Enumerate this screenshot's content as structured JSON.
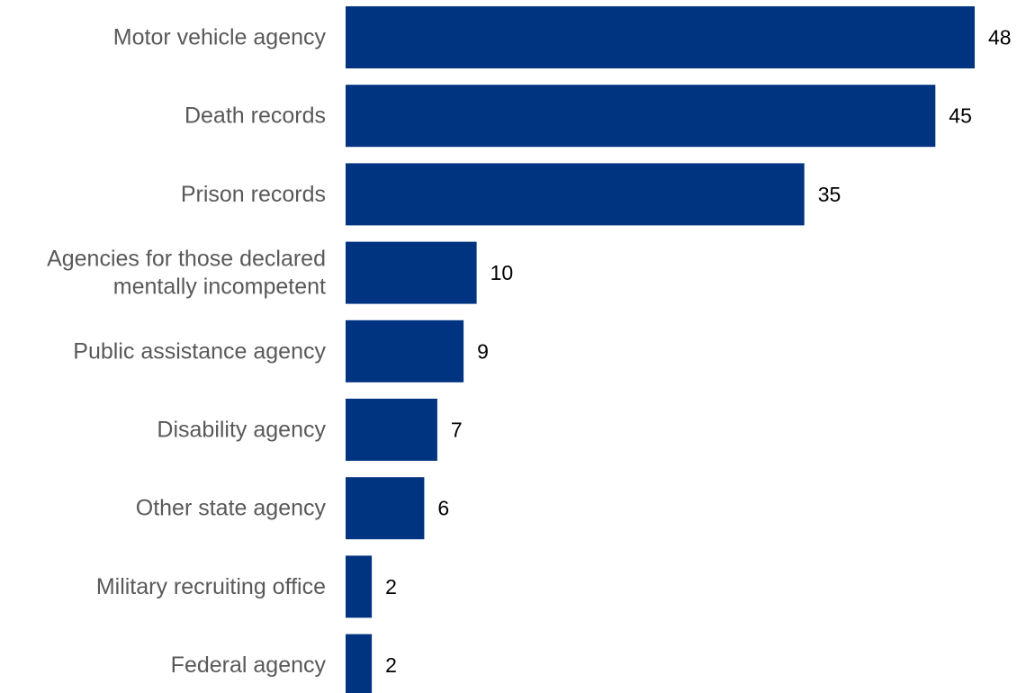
{
  "chart_data": {
    "type": "bar",
    "orientation": "horizontal",
    "categories": [
      "Motor vehicle agency",
      "Death records",
      "Prison records",
      "Agencies for those declared\nmentally incompetent",
      "Public assistance agency",
      "Disability agency",
      "Other state agency",
      "Military recruiting office",
      "Federal agency"
    ],
    "values": [
      48,
      45,
      35,
      10,
      9,
      7,
      6,
      2,
      2
    ],
    "data_labels": [
      "48",
      "45",
      "35",
      "10",
      "9",
      "7",
      "6",
      "2",
      "2"
    ],
    "title": "",
    "xlabel": "",
    "ylabel": "",
    "xlim": [
      0,
      48
    ],
    "grid": false,
    "legend": "none",
    "bar_color": "#003380"
  }
}
